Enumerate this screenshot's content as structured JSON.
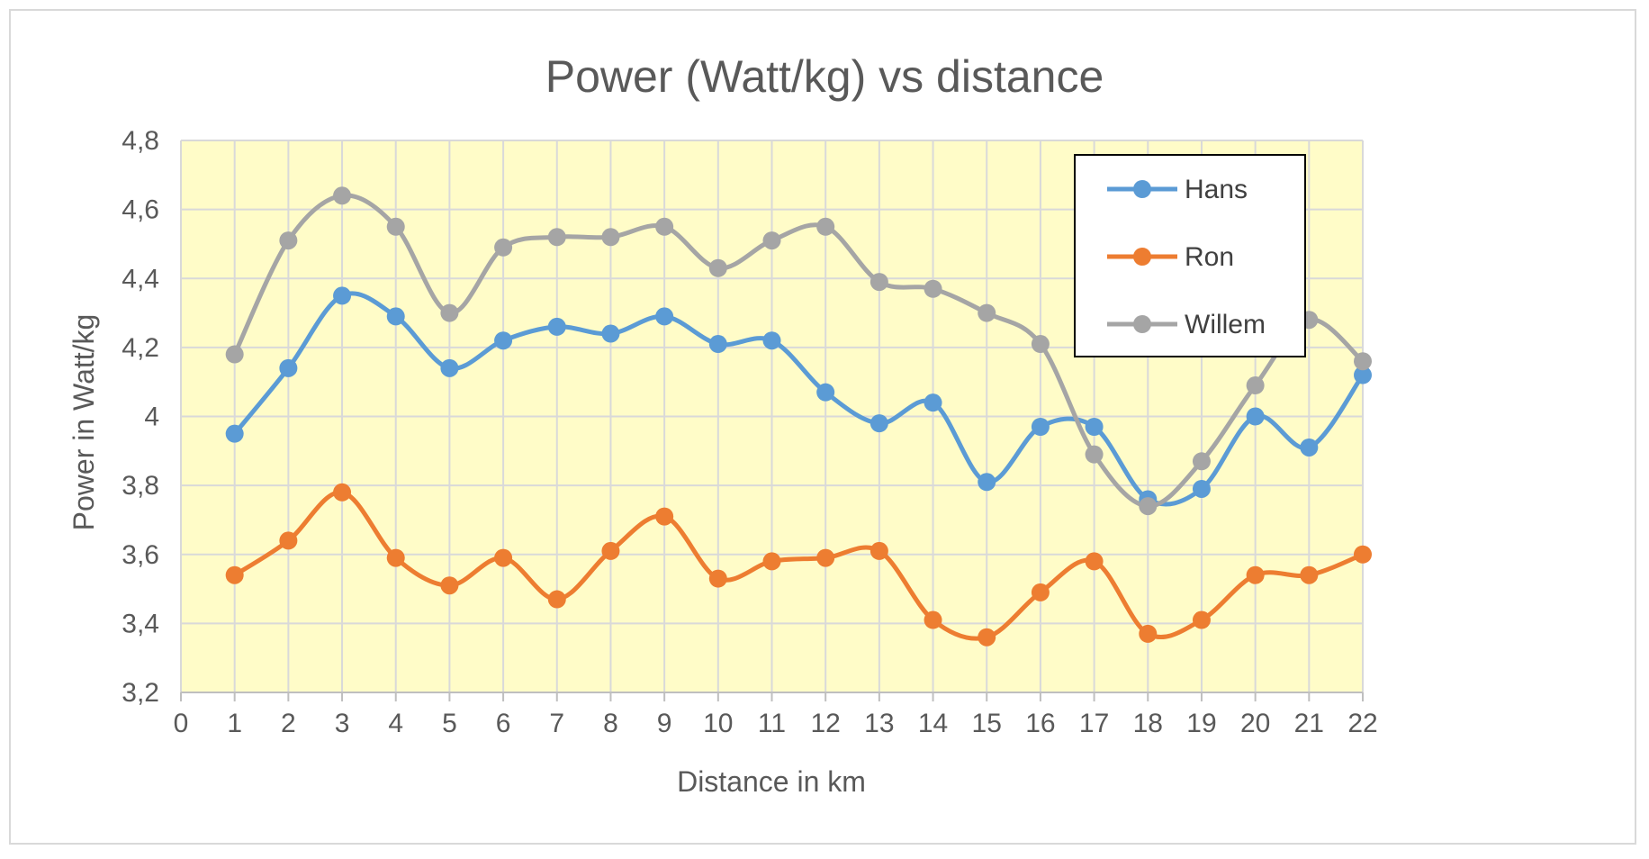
{
  "chart_data": {
    "type": "line",
    "title": "Power (Watt/kg) vs distance",
    "xlabel": "Distance in km",
    "ylabel": "Power in Watt/kg",
    "xlim": [
      0,
      22
    ],
    "ylim": [
      3.2,
      4.8
    ],
    "x_ticks": [
      "0",
      "1",
      "2",
      "3",
      "4",
      "5",
      "6",
      "7",
      "8",
      "9",
      "10",
      "11",
      "12",
      "13",
      "14",
      "15",
      "16",
      "17",
      "18",
      "19",
      "20",
      "21",
      "22"
    ],
    "y_ticks": [
      {
        "value": 3.2,
        "label": "3,2"
      },
      {
        "value": 3.4,
        "label": "3,4"
      },
      {
        "value": 3.6,
        "label": "3,6"
      },
      {
        "value": 3.8,
        "label": "3,8"
      },
      {
        "value": 4.0,
        "label": "4"
      },
      {
        "value": 4.2,
        "label": "4,2"
      },
      {
        "value": 4.4,
        "label": "4,4"
      },
      {
        "value": 4.6,
        "label": "4,6"
      },
      {
        "value": 4.8,
        "label": "4,8"
      }
    ],
    "grid": true,
    "plot_background": "#fffcc8",
    "legend_position": "top-right",
    "x": [
      1,
      2,
      3,
      4,
      5,
      6,
      7,
      8,
      9,
      10,
      11,
      12,
      13,
      14,
      15,
      16,
      17,
      18,
      19,
      20,
      21,
      22
    ],
    "series": [
      {
        "name": "Hans",
        "color": "#5b9bd5",
        "values": [
          3.95,
          4.14,
          4.35,
          4.29,
          4.14,
          4.22,
          4.26,
          4.24,
          4.29,
          4.21,
          4.22,
          4.07,
          3.98,
          4.04,
          3.81,
          3.97,
          3.97,
          3.76,
          3.79,
          4.0,
          3.91,
          4.12
        ]
      },
      {
        "name": "Ron",
        "color": "#ed7d31",
        "values": [
          3.54,
          3.64,
          3.78,
          3.59,
          3.51,
          3.59,
          3.47,
          3.61,
          3.71,
          3.53,
          3.58,
          3.59,
          3.61,
          3.41,
          3.36,
          3.49,
          3.58,
          3.37,
          3.41,
          3.54,
          3.54,
          3.6
        ]
      },
      {
        "name": "Willem",
        "color": "#a5a5a5",
        "values": [
          4.18,
          4.51,
          4.64,
          4.55,
          4.3,
          4.49,
          4.52,
          4.52,
          4.55,
          4.43,
          4.51,
          4.55,
          4.39,
          4.37,
          4.3,
          4.21,
          3.89,
          3.74,
          3.87,
          4.09,
          4.28,
          4.16
        ]
      }
    ]
  }
}
